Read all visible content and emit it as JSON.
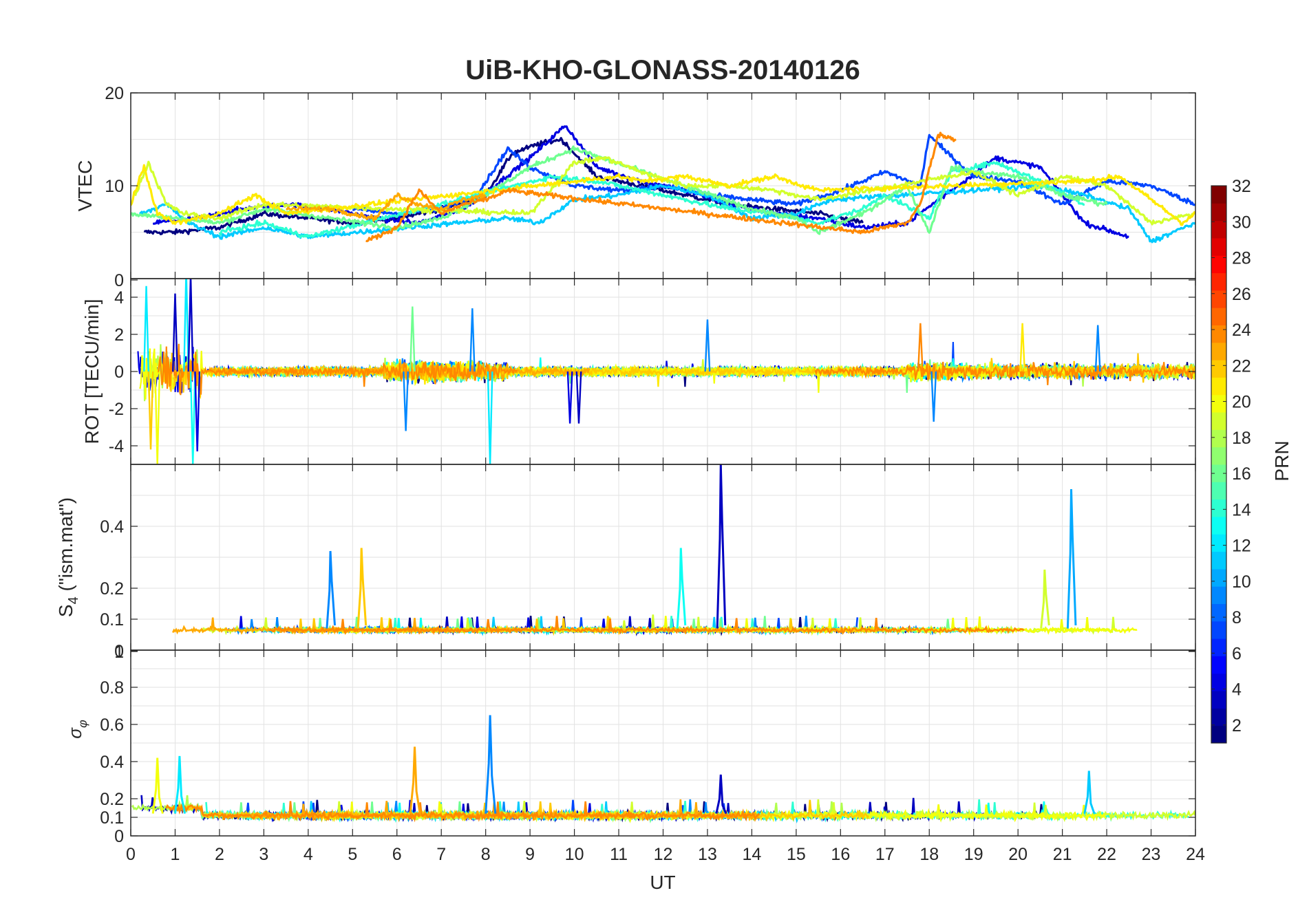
{
  "figure": {
    "title": "UiB-KHO-GLONASS-20140126",
    "xlabel": "UT",
    "colorbar_label": "PRN"
  },
  "chart_data": [
    {
      "type": "line",
      "panel": "VTEC",
      "title": "UiB-KHO-GLONASS-20140126",
      "xlabel": "",
      "ylabel": "VTEC",
      "xlim": [
        0,
        24
      ],
      "ylim": [
        0,
        20
      ],
      "yticks": [
        10,
        20
      ],
      "grid": true,
      "series": [
        {
          "prn": 1,
          "x": [
            0.3,
            1.0,
            2.0,
            3.0,
            4.0,
            5.0,
            6.0,
            7.0,
            8.0,
            8.6,
            9.2,
            9.7,
            10.5,
            11.5,
            12.5,
            13.5,
            14.5,
            15.5,
            16.5
          ],
          "y": [
            5.0,
            5.0,
            5.5,
            7.0,
            6.5,
            6.0,
            6.5,
            7.5,
            9.0,
            13.5,
            14.5,
            15.0,
            11.0,
            10.0,
            9.0,
            8.0,
            7.5,
            7.0,
            6.0
          ]
        },
        {
          "prn": 4,
          "x": [
            0.5,
            1.5,
            2.5,
            3.5,
            4.5,
            5.5,
            6.5,
            7.5,
            8.2,
            9.0,
            9.8,
            10.5,
            11.5,
            12.5,
            13.5,
            14.5,
            15.5,
            16.5,
            17.5,
            19.5,
            20.5,
            21.5,
            22.5
          ],
          "y": [
            6.0,
            6.5,
            7.5,
            8.0,
            7.5,
            6.5,
            6.0,
            7.5,
            10.0,
            13.0,
            16.5,
            12.0,
            10.5,
            9.5,
            8.0,
            7.0,
            6.5,
            5.5,
            6.0,
            13.0,
            12.0,
            6.0,
            4.5
          ]
        },
        {
          "prn": 7,
          "x": [
            5.0,
            6.0,
            7.0,
            7.8,
            8.5,
            9.0,
            10.0,
            11.0,
            12.0,
            13.0,
            14.0,
            15.0,
            16.0,
            17.0,
            17.8,
            18.0,
            18.3,
            19.0,
            20.0,
            21.0,
            22.0,
            23.0,
            24.0
          ],
          "y": [
            7.5,
            7.0,
            7.5,
            9.0,
            14.0,
            12.0,
            10.0,
            9.5,
            10.0,
            9.0,
            8.5,
            8.0,
            9.5,
            11.5,
            10.0,
            15.5,
            14.0,
            11.0,
            10.5,
            8.0,
            10.5,
            10.0,
            8.0
          ]
        },
        {
          "prn": 11,
          "x": [
            0.2,
            0.8,
            1.3,
            2.0,
            3.0,
            4.0,
            8.5,
            9.2,
            10.0,
            11.0,
            12.0,
            13.0,
            14.0,
            15.0,
            15.8,
            20.5,
            21.5,
            22.5,
            23.0,
            24.0
          ],
          "y": [
            7.0,
            8.0,
            6.0,
            4.5,
            5.5,
            4.5,
            6.5,
            6.0,
            8.5,
            9.0,
            10.0,
            9.0,
            6.5,
            7.0,
            8.5,
            10.0,
            9.0,
            7.5,
            4.0,
            6.0
          ]
        },
        {
          "prn": 14,
          "x": [
            2.0,
            3.0,
            4.0,
            9.5,
            10.5,
            11.5,
            12.5,
            13.5,
            14.5,
            15.5,
            16.5,
            17.0,
            18.0,
            18.5,
            19.5,
            20.5,
            21.5
          ],
          "y": [
            5.0,
            6.0,
            4.5,
            11.0,
            10.5,
            9.5,
            8.5,
            7.5,
            7.0,
            6.0,
            7.5,
            9.0,
            6.5,
            11.5,
            12.5,
            10.5,
            8.0
          ]
        },
        {
          "prn": 16,
          "x": [
            0.0,
            1.0,
            2.0,
            3.0,
            6.0,
            7.0,
            8.0,
            9.0,
            10.0,
            14.0,
            15.0,
            15.5,
            16.5,
            17.5,
            18.0,
            18.5,
            19.0,
            20.0,
            21.0,
            22.0
          ],
          "y": [
            7.0,
            6.5,
            6.0,
            7.5,
            5.5,
            6.5,
            9.0,
            12.0,
            14.0,
            7.5,
            6.5,
            5.0,
            7.0,
            10.0,
            5.0,
            12.0,
            11.5,
            11.0,
            9.0,
            8.0
          ]
        },
        {
          "prn": 19,
          "x": [
            0.1,
            0.4,
            0.8,
            1.2,
            2.0,
            3.0,
            9.0,
            10.0,
            10.7,
            11.5,
            12.5,
            13.5,
            14.5,
            15.5,
            19.0,
            20.0,
            21.0,
            22.0,
            23.0,
            24.0
          ],
          "y": [
            9.0,
            12.5,
            8.0,
            7.0,
            6.5,
            8.0,
            7.0,
            12.5,
            13.0,
            11.5,
            10.0,
            10.0,
            9.5,
            8.5,
            11.5,
            9.0,
            11.0,
            10.0,
            6.0,
            7.0
          ]
        },
        {
          "prn": 21,
          "x": [
            0.0,
            0.3,
            0.6,
            1.0,
            2.0,
            2.8,
            3.5,
            11.0,
            11.5,
            12.5,
            13.5,
            14.5,
            15.5,
            21.5,
            22.3,
            23.0,
            23.7,
            24.0
          ],
          "y": [
            8.0,
            12.0,
            7.0,
            6.0,
            7.0,
            9.0,
            7.0,
            11.0,
            10.5,
            11.0,
            10.0,
            11.0,
            9.5,
            10.5,
            11.0,
            8.5,
            6.0,
            7.0
          ]
        },
        {
          "prn": 23,
          "x": [
            3.5,
            4.5,
            5.5,
            6.0,
            6.5,
            7.0,
            7.5,
            8.0
          ],
          "y": [
            7.5,
            7.5,
            6.5,
            9.0,
            8.0,
            7.5,
            8.5,
            9.0
          ]
        },
        {
          "prn": 24,
          "x": [
            5.3,
            6.0,
            6.5,
            7.0,
            7.5,
            8.0,
            8.5,
            16.5,
            17.0,
            17.5,
            17.8,
            18.2,
            18.6
          ],
          "y": [
            4.0,
            5.5,
            9.5,
            7.0,
            8.0,
            8.5,
            9.5,
            5.0,
            5.5,
            6.0,
            8.0,
            15.5,
            15.0
          ]
        }
      ]
    },
    {
      "type": "line",
      "panel": "ROT",
      "xlabel": "",
      "ylabel": "ROT [TECU/min]",
      "xlim": [
        0,
        24
      ],
      "ylim": [
        -5,
        5
      ],
      "yticks": [
        -4,
        -2,
        0,
        2,
        4
      ],
      "grid": true,
      "series_note": "noisy rate-of-TEC traces for all PRNs, mostly within ±1.5 TECU/min, spikes to ±5 near 0–1.5 UT"
    },
    {
      "type": "line",
      "panel": "S4",
      "xlabel": "",
      "ylabel": "S4 (\"ism.mat\")",
      "xlim": [
        0,
        24
      ],
      "ylim": [
        0,
        0.6
      ],
      "yticks": [
        0.1,
        0.2,
        0.4
      ],
      "grid": true,
      "spikes": [
        {
          "x": 4.5,
          "y": 0.32,
          "prn": 9
        },
        {
          "x": 5.2,
          "y": 0.33,
          "prn": 22
        },
        {
          "x": 12.4,
          "y": 0.33,
          "prn": 13
        },
        {
          "x": 13.3,
          "y": 0.6,
          "prn": 3
        },
        {
          "x": 21.2,
          "y": 0.52,
          "prn": 10
        },
        {
          "x": 20.6,
          "y": 0.26,
          "prn": 19
        }
      ]
    },
    {
      "type": "line",
      "panel": "sigma_phi",
      "xlabel": "UT",
      "ylabel": "σφ",
      "xlim": [
        0,
        24
      ],
      "ylim": [
        0,
        1
      ],
      "yticks": [
        0,
        0.1,
        0.2,
        0.4,
        0.6,
        0.8
      ],
      "grid": true,
      "spikes": [
        {
          "x": 0.6,
          "y": 0.42,
          "prn": 20
        },
        {
          "x": 1.1,
          "y": 0.43,
          "prn": 12
        },
        {
          "x": 6.4,
          "y": 0.48,
          "prn": 23
        },
        {
          "x": 8.1,
          "y": 0.65,
          "prn": 9
        },
        {
          "x": 13.3,
          "y": 0.33,
          "prn": 3
        },
        {
          "x": 21.6,
          "y": 0.35,
          "prn": 11
        }
      ]
    }
  ],
  "axes": {
    "xticks": [
      "0",
      "1",
      "2",
      "3",
      "4",
      "5",
      "6",
      "7",
      "8",
      "9",
      "10",
      "11",
      "12",
      "13",
      "14",
      "15",
      "16",
      "17",
      "18",
      "19",
      "20",
      "21",
      "22",
      "23",
      "24"
    ],
    "vtec_ticks": [
      "10",
      "20"
    ],
    "rot_ticks": [
      "-4",
      "-2",
      "0",
      "2",
      "4"
    ],
    "rot_top_tick": "0",
    "s4_ticks": [
      "0.1",
      "0.2",
      "0.4"
    ],
    "s4_bottom_tick": "0",
    "sig_top_tick": "1",
    "sig_ticks": [
      "0",
      "0.1",
      "0.2",
      "0.4",
      "0.6",
      "0.8"
    ]
  },
  "colorbar": {
    "label": "PRN",
    "ticks": [
      "2",
      "4",
      "6",
      "8",
      "10",
      "12",
      "14",
      "16",
      "18",
      "20",
      "22",
      "24",
      "26",
      "28",
      "30",
      "32"
    ],
    "range": [
      1,
      32
    ],
    "colormap": "jet"
  },
  "labels": {
    "vtec": "VTEC",
    "rot": "ROT [TECU/min]",
    "s4_main": "S",
    "s4_sub": "4",
    "s4_rest": " (\"ism.mat\")",
    "sig_main": "σ",
    "sig_sub": "φ"
  }
}
